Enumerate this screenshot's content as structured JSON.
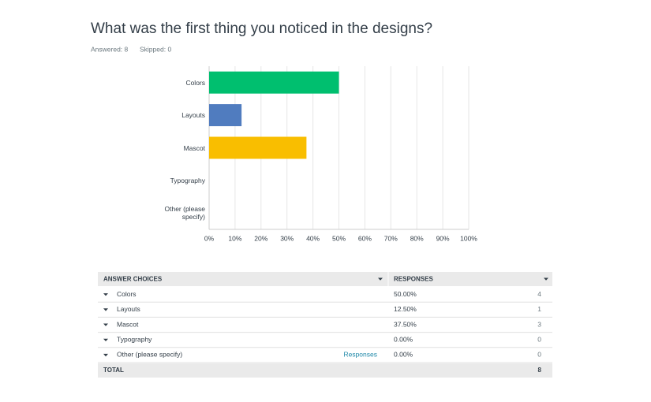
{
  "header": {
    "title": "What was the first thing you noticed in the designs?",
    "answered": "Answered: 8",
    "skipped": "Skipped: 0"
  },
  "chart_data": {
    "type": "hbar",
    "categories": [
      "Colors",
      "Layouts",
      "Mascot",
      "Typography",
      "Other (please specify)"
    ],
    "values": [
      50,
      12.5,
      37.5,
      0,
      0
    ],
    "colors": [
      "#00bf6f",
      "#507cbf",
      "#f9be00",
      "#6bc8cd",
      "#ff8b4f"
    ],
    "xlim": [
      0,
      100
    ],
    "xticks": [
      {
        "value": 0,
        "label": "0%"
      },
      {
        "value": 10,
        "label": "10%"
      },
      {
        "value": 20,
        "label": "20%"
      },
      {
        "value": 30,
        "label": "30%"
      },
      {
        "value": 40,
        "label": "40%"
      },
      {
        "value": 50,
        "label": "50%"
      },
      {
        "value": 60,
        "label": "60%"
      },
      {
        "value": 70,
        "label": "70%"
      },
      {
        "value": 80,
        "label": "80%"
      },
      {
        "value": 90,
        "label": "90%"
      },
      {
        "value": 100,
        "label": "100%"
      }
    ],
    "grid": true
  },
  "table": {
    "columns": [
      "ANSWER CHOICES",
      "RESPONSES"
    ],
    "rows": [
      [
        "Colors",
        null,
        "50.00%",
        4
      ],
      [
        "Layouts",
        null,
        "12.50%",
        1
      ],
      [
        "Mascot",
        null,
        "37.50%",
        3
      ],
      [
        "Typography",
        null,
        "0.00%",
        0
      ],
      [
        "Other (please specify)",
        "Responses",
        "0.00%",
        0
      ]
    ],
    "total": [
      "TOTAL",
      8
    ]
  }
}
